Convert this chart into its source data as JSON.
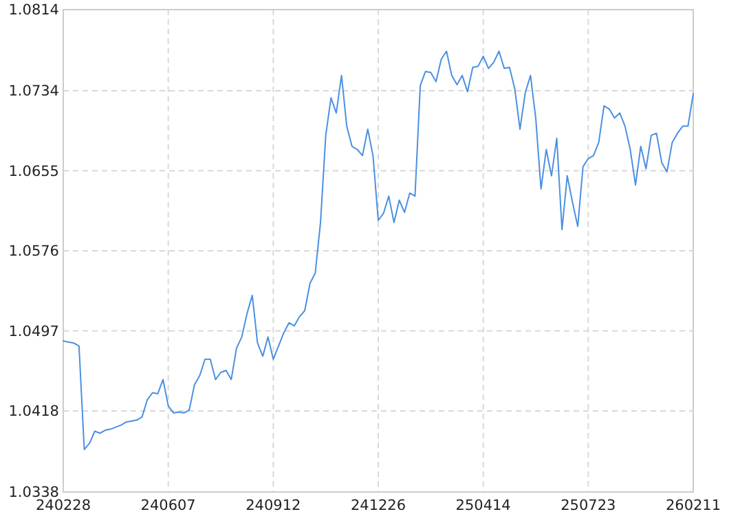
{
  "chart_data": {
    "type": "line",
    "categories": [
      "240228",
      null,
      null,
      null,
      null,
      null,
      null,
      null,
      null,
      null,
      null,
      null,
      null,
      null,
      null,
      null,
      null,
      null,
      null,
      null,
      "240607",
      null,
      null,
      null,
      null,
      null,
      null,
      null,
      null,
      null,
      null,
      null,
      null,
      null,
      null,
      null,
      null,
      null,
      null,
      null,
      "240912",
      null,
      null,
      null,
      null,
      null,
      null,
      null,
      null,
      null,
      null,
      null,
      null,
      null,
      null,
      null,
      null,
      null,
      null,
      null,
      "241226",
      null,
      null,
      null,
      null,
      null,
      null,
      null,
      null,
      null,
      null,
      null,
      null,
      null,
      null,
      null,
      null,
      null,
      null,
      null,
      "250414",
      null,
      null,
      null,
      null,
      null,
      null,
      null,
      null,
      null,
      null,
      null,
      null,
      null,
      null,
      null,
      null,
      null,
      null,
      null,
      "250723",
      null,
      null,
      null,
      null,
      null,
      null,
      null,
      null,
      null,
      null,
      null,
      null,
      null,
      null,
      null,
      null,
      null,
      null,
      null,
      "260211"
    ],
    "series": [
      {
        "color": "#4a90e2",
        "values": [
          1.0487,
          1.0486,
          1.0485,
          1.0482,
          1.038,
          1.0386,
          1.0398,
          1.0396,
          1.0399,
          1.04,
          1.0402,
          1.0404,
          1.0407,
          1.0408,
          1.0409,
          1.0412,
          1.0429,
          1.0436,
          1.0435,
          1.0449,
          1.0423,
          1.0416,
          1.0417,
          1.0416,
          1.0419,
          1.0444,
          1.0453,
          1.0469,
          1.0469,
          1.0449,
          1.0456,
          1.0458,
          1.0449,
          1.048,
          1.0491,
          1.0514,
          1.0532,
          1.0485,
          1.0472,
          1.0491,
          1.0469,
          1.0482,
          1.0495,
          1.0505,
          1.0502,
          1.0511,
          1.0517,
          1.0544,
          1.0554,
          1.0604,
          1.069,
          1.0727,
          1.0712,
          1.0749,
          1.0699,
          1.0679,
          1.0676,
          1.067,
          1.0696,
          1.067,
          1.0606,
          1.0613,
          1.063,
          1.0604,
          1.0626,
          1.0614,
          1.0633,
          1.063,
          1.0739,
          1.0753,
          1.0752,
          1.0743,
          1.0765,
          1.0773,
          1.0749,
          1.074,
          1.0749,
          1.0733,
          1.0757,
          1.0758,
          1.0768,
          1.0756,
          1.0762,
          1.0773,
          1.0756,
          1.0757,
          1.0736,
          1.0696,
          1.0732,
          1.0749,
          1.0707,
          1.0637,
          1.0676,
          1.065,
          1.0687,
          1.0597,
          1.065,
          1.0624,
          1.06,
          1.0659,
          1.0667,
          1.067,
          1.0683,
          1.0719,
          1.0716,
          1.0707,
          1.0712,
          1.0699,
          1.0676,
          1.0641,
          1.0679,
          1.0657,
          1.069,
          1.0692,
          1.0663,
          1.0654,
          1.0683,
          1.0692,
          1.0699,
          1.0699,
          1.0731
        ]
      }
    ],
    "ylim": [
      1.0338,
      1.0814
    ],
    "yticks": [
      1.0338,
      1.0418,
      1.0497,
      1.0576,
      1.0655,
      1.0734,
      1.0814
    ],
    "grid": true,
    "line_style": "solid",
    "marker": "none"
  }
}
